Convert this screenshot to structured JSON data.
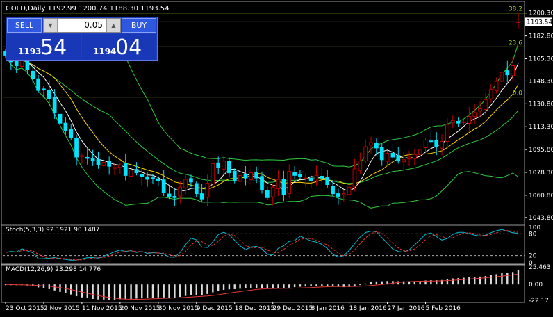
{
  "symbol_header": "GOLD,Daily  1192.99 1200.74 1188.30 1193.54",
  "current_price": "1193.54",
  "trade_panel": {
    "sell_label": "SELL",
    "buy_label": "BUY",
    "lot_value": "0.05",
    "sell_price_small": "1193",
    "sell_price_big": "54",
    "buy_price_small": "1194",
    "buy_price_big": "04"
  },
  "fib_levels": [
    {
      "label": "38.2",
      "price": 1200.3
    },
    {
      "label": "23.6",
      "price": 1174.4
    },
    {
      "label": "0.0",
      "price": 1136.0
    }
  ],
  "colors": {
    "bull": "#c00000",
    "bear": "#00e5ff",
    "fib": "#9acd32",
    "bands": "#2ecc40",
    "ma_fast": "#ffffff",
    "ma_slow": "#ffd700",
    "stoch_main": "#00bcd4",
    "stoch_signal": "#e53935",
    "macd_hist": "#dddddd",
    "macd_signal": "#e53935",
    "grid_text": "#ffffff",
    "current_line": "#8080a0"
  },
  "chart_data": [
    {
      "type": "candlestick",
      "title": "GOLD,Daily",
      "ylim": [
        1040,
        1206
      ],
      "y_ticks": [
        "1200.30",
        "1182.80",
        "1165.30",
        "1148.30",
        "1130.80",
        "1113.30",
        "1095.80",
        "1078.30",
        "1060.80",
        "1043.80"
      ],
      "y_tick_values": [
        1200.3,
        1182.8,
        1165.3,
        1148.3,
        1130.8,
        1113.3,
        1095.8,
        1078.3,
        1060.8,
        1043.8
      ],
      "x_labels": [
        "23 Oct 2015",
        "2 Nov 2015",
        "11 Nov 2015",
        "20 Nov 2015",
        "30 Nov 2015",
        "9 Dec 2015",
        "18 Dec 2015",
        "29 Dec 2015",
        "8 Jan 2016",
        "18 Jan 2016",
        "27 Jan 2016",
        "5 Feb 2016"
      ],
      "x_label_index": [
        0,
        7,
        14,
        21,
        28,
        35,
        42,
        49,
        56,
        63,
        70,
        77
      ],
      "closes": [
        1168,
        1163,
        1160,
        1166,
        1157,
        1150,
        1141,
        1142,
        1135,
        1124,
        1116,
        1110,
        1105,
        1090,
        1091,
        1089,
        1087,
        1084,
        1086,
        1083,
        1082,
        1084,
        1076,
        1080,
        1078,
        1075,
        1073,
        1074,
        1072,
        1063,
        1060,
        1059,
        1067,
        1073,
        1071,
        1062,
        1058,
        1070,
        1085,
        1082,
        1087,
        1078,
        1072,
        1076,
        1074,
        1078,
        1074,
        1065,
        1059,
        1067,
        1073,
        1061,
        1079,
        1076,
        1075,
        1074,
        1072,
        1076,
        1074,
        1069,
        1062,
        1060,
        1062,
        1067,
        1081,
        1087,
        1098,
        1101,
        1097,
        1088,
        1093,
        1090,
        1087,
        1088,
        1090,
        1092,
        1096,
        1103,
        1102,
        1098,
        1102,
        1115,
        1118,
        1116,
        1117,
        1121,
        1124,
        1127,
        1134,
        1142,
        1148,
        1155,
        1153,
        1160,
        1193.5
      ],
      "series": [
        {
          "name": "Stoch(5,3,3)",
          "values_main": 92.1921,
          "values_signal": 90.1487,
          "levels": [
            80,
            20
          ],
          "ylim": [
            0,
            100
          ]
        },
        {
          "name": "MACD(12,26,9)",
          "value_main": 23.298,
          "value_signal": 14.776,
          "ylim": [
            -22.17,
            25.463
          ]
        }
      ],
      "stoch_label": "Stoch(5,3,3) 92.1921 90.1487",
      "stoch_ticks": [
        "100",
        "80",
        "20",
        "0"
      ],
      "macd_label": "MACD(12,26,9) 23.298 14.776",
      "macd_ticks": [
        "25.463",
        "0.00",
        "-22.17"
      ]
    }
  ]
}
